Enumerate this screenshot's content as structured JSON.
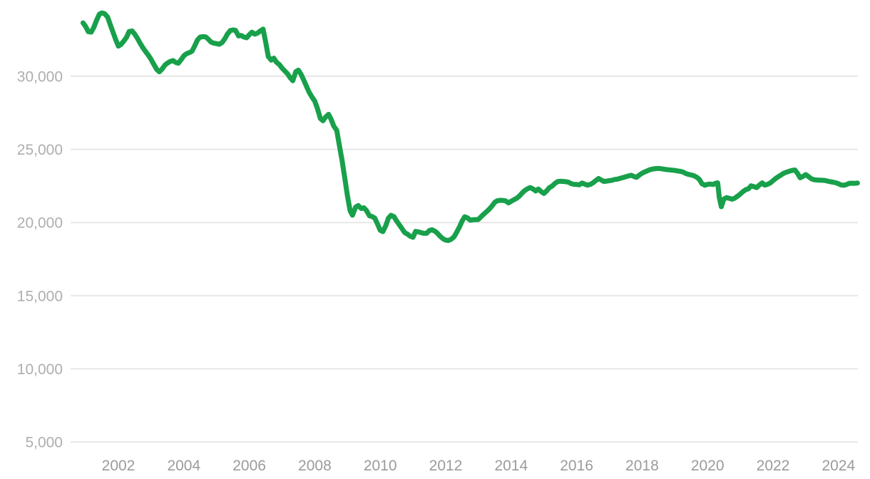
{
  "chart_data": {
    "type": "line",
    "title": "",
    "xlabel": "",
    "ylabel": "",
    "grid": "horizontal",
    "legend": "none",
    "line_color": "#18a04b",
    "grid_color": "#e7e7e7",
    "y_tick_color": "#aeaeae",
    "x_tick_color": "#9b9b9b",
    "xlim": [
      2000.55,
      2024.6
    ],
    "ylim": [
      5000,
      34500
    ],
    "y_ticks": [
      {
        "value": 30000,
        "label": "30,000"
      },
      {
        "value": 25000,
        "label": "25,000"
      },
      {
        "value": 20000,
        "label": "20,000"
      },
      {
        "value": 15000,
        "label": "15,000"
      },
      {
        "value": 10000,
        "label": "10,000"
      },
      {
        "value": 5000,
        "label": "5,000"
      }
    ],
    "x_ticks": [
      {
        "value": 2002,
        "label": "2002"
      },
      {
        "value": 2004,
        "label": "2004"
      },
      {
        "value": 2006,
        "label": "2006"
      },
      {
        "value": 2008,
        "label": "2008"
      },
      {
        "value": 2010,
        "label": "2010"
      },
      {
        "value": 2012,
        "label": "2012"
      },
      {
        "value": 2014,
        "label": "2014"
      },
      {
        "value": 2016,
        "label": "2016"
      },
      {
        "value": 2018,
        "label": "2018"
      },
      {
        "value": 2020,
        "label": "2020"
      },
      {
        "value": 2022,
        "label": "2022"
      },
      {
        "value": 2024,
        "label": "2024"
      }
    ],
    "series": [
      {
        "name": "value",
        "color": "#18a04b",
        "points": [
          [
            2000.92,
            33650
          ],
          [
            2001.0,
            33400
          ],
          [
            2001.08,
            33050
          ],
          [
            2001.17,
            33020
          ],
          [
            2001.25,
            33350
          ],
          [
            2001.33,
            33800
          ],
          [
            2001.42,
            34250
          ],
          [
            2001.5,
            34330
          ],
          [
            2001.58,
            34280
          ],
          [
            2001.67,
            34050
          ],
          [
            2001.75,
            33550
          ],
          [
            2001.83,
            33050
          ],
          [
            2001.92,
            32500
          ],
          [
            2002.0,
            32060
          ],
          [
            2002.08,
            32180
          ],
          [
            2002.17,
            32420
          ],
          [
            2002.25,
            32670
          ],
          [
            2002.33,
            33060
          ],
          [
            2002.42,
            33100
          ],
          [
            2002.5,
            32880
          ],
          [
            2002.58,
            32600
          ],
          [
            2002.67,
            32230
          ],
          [
            2002.75,
            31950
          ],
          [
            2002.83,
            31690
          ],
          [
            2002.92,
            31430
          ],
          [
            2003.0,
            31150
          ],
          [
            2003.08,
            30820
          ],
          [
            2003.17,
            30480
          ],
          [
            2003.25,
            30300
          ],
          [
            2003.33,
            30480
          ],
          [
            2003.42,
            30760
          ],
          [
            2003.5,
            30900
          ],
          [
            2003.58,
            31010
          ],
          [
            2003.67,
            31070
          ],
          [
            2003.75,
            30950
          ],
          [
            2003.83,
            30890
          ],
          [
            2003.92,
            31140
          ],
          [
            2004.0,
            31400
          ],
          [
            2004.08,
            31540
          ],
          [
            2004.17,
            31620
          ],
          [
            2004.25,
            31720
          ],
          [
            2004.33,
            32060
          ],
          [
            2004.42,
            32500
          ],
          [
            2004.5,
            32680
          ],
          [
            2004.58,
            32710
          ],
          [
            2004.67,
            32690
          ],
          [
            2004.75,
            32530
          ],
          [
            2004.83,
            32340
          ],
          [
            2004.92,
            32260
          ],
          [
            2005.0,
            32230
          ],
          [
            2005.08,
            32190
          ],
          [
            2005.17,
            32310
          ],
          [
            2005.25,
            32560
          ],
          [
            2005.33,
            32880
          ],
          [
            2005.42,
            33130
          ],
          [
            2005.5,
            33170
          ],
          [
            2005.58,
            33140
          ],
          [
            2005.67,
            32760
          ],
          [
            2005.75,
            32790
          ],
          [
            2005.83,
            32690
          ],
          [
            2005.92,
            32630
          ],
          [
            2006.0,
            32840
          ],
          [
            2006.08,
            33010
          ],
          [
            2006.17,
            32880
          ],
          [
            2006.25,
            32950
          ],
          [
            2006.33,
            33090
          ],
          [
            2006.42,
            33220
          ],
          [
            2006.5,
            32350
          ],
          [
            2006.58,
            31350
          ],
          [
            2006.67,
            31100
          ],
          [
            2006.75,
            31240
          ],
          [
            2006.83,
            30960
          ],
          [
            2006.92,
            30800
          ],
          [
            2007.0,
            30560
          ],
          [
            2007.08,
            30370
          ],
          [
            2007.17,
            30160
          ],
          [
            2007.25,
            29900
          ],
          [
            2007.33,
            29700
          ],
          [
            2007.42,
            30310
          ],
          [
            2007.5,
            30420
          ],
          [
            2007.58,
            30140
          ],
          [
            2007.67,
            29700
          ],
          [
            2007.75,
            29300
          ],
          [
            2007.83,
            28900
          ],
          [
            2007.92,
            28560
          ],
          [
            2008.0,
            28300
          ],
          [
            2008.08,
            27800
          ],
          [
            2008.17,
            27120
          ],
          [
            2008.25,
            26960
          ],
          [
            2008.33,
            27210
          ],
          [
            2008.42,
            27400
          ],
          [
            2008.5,
            27060
          ],
          [
            2008.58,
            26600
          ],
          [
            2008.67,
            26300
          ],
          [
            2008.75,
            25300
          ],
          [
            2008.83,
            24300
          ],
          [
            2008.92,
            23000
          ],
          [
            2009.0,
            21800
          ],
          [
            2009.08,
            20800
          ],
          [
            2009.15,
            20500
          ],
          [
            2009.25,
            21060
          ],
          [
            2009.33,
            21160
          ],
          [
            2009.42,
            20960
          ],
          [
            2009.5,
            21010
          ],
          [
            2009.58,
            20820
          ],
          [
            2009.67,
            20460
          ],
          [
            2009.75,
            20410
          ],
          [
            2009.83,
            20310
          ],
          [
            2009.92,
            19890
          ],
          [
            2010.0,
            19470
          ],
          [
            2010.08,
            19380
          ],
          [
            2010.17,
            19790
          ],
          [
            2010.25,
            20300
          ],
          [
            2010.33,
            20490
          ],
          [
            2010.42,
            20400
          ],
          [
            2010.5,
            20110
          ],
          [
            2010.58,
            19860
          ],
          [
            2010.67,
            19560
          ],
          [
            2010.75,
            19310
          ],
          [
            2010.83,
            19210
          ],
          [
            2010.92,
            19060
          ],
          [
            2011.0,
            18990
          ],
          [
            2011.08,
            19390
          ],
          [
            2011.17,
            19360
          ],
          [
            2011.25,
            19310
          ],
          [
            2011.33,
            19260
          ],
          [
            2011.42,
            19270
          ],
          [
            2011.5,
            19450
          ],
          [
            2011.58,
            19510
          ],
          [
            2011.67,
            19410
          ],
          [
            2011.75,
            19260
          ],
          [
            2011.83,
            19060
          ],
          [
            2011.92,
            18890
          ],
          [
            2012.0,
            18800
          ],
          [
            2012.08,
            18770
          ],
          [
            2012.17,
            18860
          ],
          [
            2012.25,
            19010
          ],
          [
            2012.33,
            19310
          ],
          [
            2012.42,
            19700
          ],
          [
            2012.5,
            20100
          ],
          [
            2012.58,
            20390
          ],
          [
            2012.67,
            20310
          ],
          [
            2012.75,
            20160
          ],
          [
            2012.83,
            20190
          ],
          [
            2012.92,
            20200
          ],
          [
            2013.0,
            20210
          ],
          [
            2013.08,
            20400
          ],
          [
            2013.17,
            20590
          ],
          [
            2013.25,
            20750
          ],
          [
            2013.33,
            20910
          ],
          [
            2013.42,
            21150
          ],
          [
            2013.5,
            21390
          ],
          [
            2013.58,
            21490
          ],
          [
            2013.67,
            21520
          ],
          [
            2013.75,
            21510
          ],
          [
            2013.83,
            21480
          ],
          [
            2013.92,
            21340
          ],
          [
            2014.0,
            21450
          ],
          [
            2014.08,
            21560
          ],
          [
            2014.17,
            21660
          ],
          [
            2014.25,
            21810
          ],
          [
            2014.33,
            22010
          ],
          [
            2014.42,
            22200
          ],
          [
            2014.5,
            22310
          ],
          [
            2014.58,
            22390
          ],
          [
            2014.67,
            22290
          ],
          [
            2014.75,
            22160
          ],
          [
            2014.83,
            22290
          ],
          [
            2014.92,
            22110
          ],
          [
            2015.0,
            21990
          ],
          [
            2015.08,
            22160
          ],
          [
            2015.17,
            22390
          ],
          [
            2015.25,
            22490
          ],
          [
            2015.33,
            22660
          ],
          [
            2015.42,
            22800
          ],
          [
            2015.5,
            22820
          ],
          [
            2015.58,
            22810
          ],
          [
            2015.67,
            22790
          ],
          [
            2015.75,
            22760
          ],
          [
            2015.83,
            22660
          ],
          [
            2015.92,
            22610
          ],
          [
            2016.0,
            22600
          ],
          [
            2016.08,
            22580
          ],
          [
            2016.17,
            22700
          ],
          [
            2016.25,
            22620
          ],
          [
            2016.33,
            22560
          ],
          [
            2016.42,
            22610
          ],
          [
            2016.5,
            22710
          ],
          [
            2016.58,
            22860
          ],
          [
            2016.67,
            23010
          ],
          [
            2016.75,
            22910
          ],
          [
            2016.83,
            22810
          ],
          [
            2016.92,
            22830
          ],
          [
            2017.0,
            22860
          ],
          [
            2017.08,
            22890
          ],
          [
            2017.17,
            22950
          ],
          [
            2017.25,
            22970
          ],
          [
            2017.33,
            23020
          ],
          [
            2017.42,
            23080
          ],
          [
            2017.5,
            23130
          ],
          [
            2017.58,
            23180
          ],
          [
            2017.67,
            23230
          ],
          [
            2017.75,
            23150
          ],
          [
            2017.83,
            23090
          ],
          [
            2017.92,
            23250
          ],
          [
            2018.0,
            23370
          ],
          [
            2018.08,
            23460
          ],
          [
            2018.17,
            23550
          ],
          [
            2018.25,
            23620
          ],
          [
            2018.33,
            23660
          ],
          [
            2018.42,
            23690
          ],
          [
            2018.5,
            23700
          ],
          [
            2018.58,
            23680
          ],
          [
            2018.67,
            23650
          ],
          [
            2018.75,
            23620
          ],
          [
            2018.83,
            23600
          ],
          [
            2018.92,
            23580
          ],
          [
            2019.0,
            23560
          ],
          [
            2019.08,
            23530
          ],
          [
            2019.17,
            23500
          ],
          [
            2019.25,
            23450
          ],
          [
            2019.33,
            23360
          ],
          [
            2019.42,
            23290
          ],
          [
            2019.5,
            23250
          ],
          [
            2019.58,
            23200
          ],
          [
            2019.67,
            23100
          ],
          [
            2019.75,
            22950
          ],
          [
            2019.83,
            22650
          ],
          [
            2019.92,
            22550
          ],
          [
            2020.0,
            22610
          ],
          [
            2020.08,
            22630
          ],
          [
            2020.17,
            22600
          ],
          [
            2020.25,
            22690
          ],
          [
            2020.31,
            22710
          ],
          [
            2020.36,
            21700
          ],
          [
            2020.42,
            21080
          ],
          [
            2020.5,
            21610
          ],
          [
            2020.58,
            21700
          ],
          [
            2020.67,
            21650
          ],
          [
            2020.75,
            21600
          ],
          [
            2020.83,
            21660
          ],
          [
            2020.92,
            21810
          ],
          [
            2021.0,
            21950
          ],
          [
            2021.08,
            22110
          ],
          [
            2021.17,
            22250
          ],
          [
            2021.25,
            22310
          ],
          [
            2021.33,
            22510
          ],
          [
            2021.42,
            22450
          ],
          [
            2021.5,
            22390
          ],
          [
            2021.58,
            22560
          ],
          [
            2021.67,
            22710
          ],
          [
            2021.75,
            22560
          ],
          [
            2021.83,
            22610
          ],
          [
            2021.92,
            22710
          ],
          [
            2022.0,
            22860
          ],
          [
            2022.08,
            23010
          ],
          [
            2022.17,
            23150
          ],
          [
            2022.25,
            23260
          ],
          [
            2022.33,
            23370
          ],
          [
            2022.42,
            23450
          ],
          [
            2022.5,
            23510
          ],
          [
            2022.58,
            23560
          ],
          [
            2022.67,
            23590
          ],
          [
            2022.75,
            23360
          ],
          [
            2022.83,
            23060
          ],
          [
            2022.92,
            23160
          ],
          [
            2023.0,
            23280
          ],
          [
            2023.08,
            23150
          ],
          [
            2023.17,
            22990
          ],
          [
            2023.25,
            22930
          ],
          [
            2023.33,
            22910
          ],
          [
            2023.42,
            22900
          ],
          [
            2023.5,
            22890
          ],
          [
            2023.58,
            22880
          ],
          [
            2023.67,
            22830
          ],
          [
            2023.75,
            22790
          ],
          [
            2023.83,
            22760
          ],
          [
            2023.92,
            22720
          ],
          [
            2024.0,
            22650
          ],
          [
            2024.08,
            22570
          ],
          [
            2024.17,
            22550
          ],
          [
            2024.25,
            22600
          ],
          [
            2024.33,
            22680
          ],
          [
            2024.42,
            22690
          ],
          [
            2024.5,
            22680
          ],
          [
            2024.58,
            22700
          ]
        ]
      }
    ]
  }
}
